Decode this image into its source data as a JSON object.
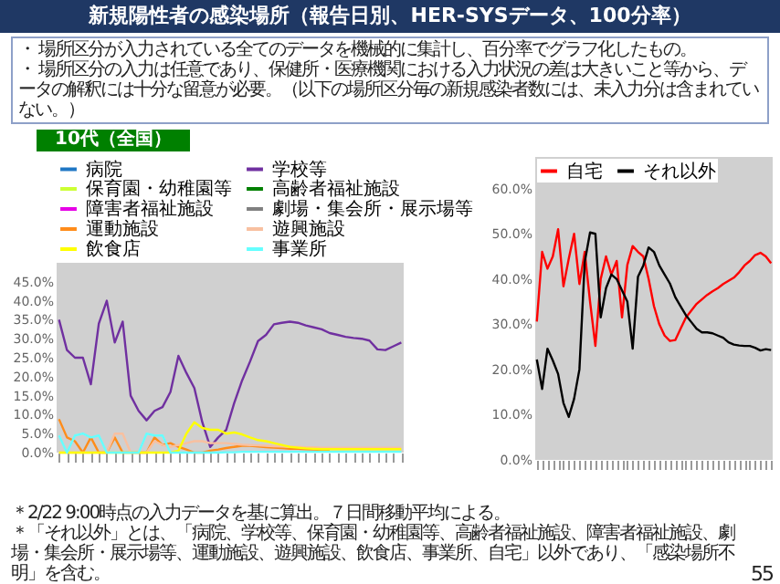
{
  "chart_data": [
    {
      "type": "line",
      "title": "新規陽性者の感染場所（報告日別、HER-SYSデータ、100分率）",
      "subtitle": "10代（全国）",
      "annotations": [
        "・ 場所区分が入力されている全てのデータを機械的に集計し、百分率でグラフ化したもの。",
        "・ 場所区分の入力は任意であり、保健所・医療機関における入力状況の差は大きいこと等から、データの解釈には十分な留意が必要。（以下の場所区分毎の新規感染者数には、未入力分は含まれていない。）",
        "＊2/22 9:00時点の入力データを基に算出。７日間移動平均による。",
        "＊「それ以外」とは、「病院、学校等、保育園・幼稚園等、高齢者福祉施設、障害者福祉施設、劇場・集会所・展示場等、運動施設、遊興施設、飲食店、事業所、自宅」以外であり、「感染場所不明」を含む。",
        "55"
      ],
      "categories": [
        null,
        null,
        null,
        null,
        null,
        null,
        null,
        null,
        null,
        null,
        null,
        null,
        null,
        null,
        null,
        null,
        null,
        null,
        null,
        null,
        null,
        null,
        null,
        null,
        null,
        null,
        null,
        null,
        null,
        null,
        null,
        null,
        null,
        null,
        null,
        null,
        null,
        null,
        null,
        null,
        null,
        null,
        null,
        null
      ],
      "ylim": [
        0,
        50
      ],
      "yticks": [
        {
          "value": 0,
          "label": "0.0%"
        },
        {
          "value": 5,
          "label": "5.0%"
        },
        {
          "value": 10,
          "label": "10.0%"
        },
        {
          "value": 15,
          "label": "15.0%"
        },
        {
          "value": 20,
          "label": "20.0%"
        },
        {
          "value": 25,
          "label": "25.0%"
        },
        {
          "value": 30,
          "label": "30.0%"
        },
        {
          "value": 35,
          "label": "35.0%"
        },
        {
          "value": 40,
          "label": "40.0%"
        },
        {
          "value": 45,
          "label": "45.0%"
        }
      ],
      "legend": "top",
      "series": [
        {
          "name": "病院",
          "color": "#1f77c4",
          "values": [
            null,
            null,
            null,
            null,
            null,
            null,
            null,
            null,
            null,
            null,
            null,
            null,
            null,
            null,
            null,
            null,
            null,
            null,
            null,
            null,
            null,
            null,
            null,
            null,
            null,
            null,
            null,
            null,
            null,
            null,
            null,
            null,
            null,
            null,
            null,
            null,
            null,
            null,
            null,
            null,
            null,
            null,
            null,
            null
          ]
        },
        {
          "name": "学校等",
          "color": "#7030a0",
          "values": [
            35,
            27,
            25,
            25,
            18,
            34,
            40,
            29,
            34.5,
            15,
            11,
            8.5,
            11,
            12,
            16,
            25.5,
            21,
            17,
            8,
            1.5,
            4,
            6,
            13,
            19,
            24,
            29.4,
            31,
            33.8,
            34.2,
            34.5,
            34.2,
            33.5,
            33,
            32.5,
            31.5,
            31,
            30.5,
            30.2,
            30,
            29.5,
            27.2,
            27,
            28,
            29
          ]
        },
        {
          "name": "保育園・幼稚園等",
          "color": "#ccff33",
          "values": [
            null,
            null,
            null,
            null,
            null,
            null,
            null,
            null,
            null,
            null,
            null,
            null,
            null,
            null,
            null,
            null,
            null,
            null,
            null,
            null,
            null,
            null,
            null,
            null,
            null,
            null,
            null,
            null,
            null,
            null,
            null,
            null,
            null,
            null,
            null,
            null,
            null,
            null,
            null,
            null,
            null,
            null,
            null,
            null
          ]
        },
        {
          "name": "高齢者福祉施設",
          "color": "#008000",
          "values": [
            null,
            null,
            null,
            null,
            null,
            null,
            null,
            null,
            null,
            null,
            null,
            null,
            null,
            null,
            null,
            null,
            null,
            null,
            null,
            null,
            null,
            null,
            null,
            null,
            null,
            null,
            null,
            null,
            null,
            null,
            null,
            null,
            null,
            null,
            null,
            null,
            null,
            null,
            null,
            null,
            null,
            null,
            null,
            null
          ]
        },
        {
          "name": "障害者福祉施設",
          "color": "#e600e6",
          "values": [
            null,
            null,
            null,
            null,
            null,
            null,
            null,
            null,
            null,
            null,
            null,
            null,
            null,
            null,
            null,
            null,
            null,
            null,
            null,
            null,
            null,
            null,
            null,
            null,
            null,
            null,
            null,
            null,
            null,
            null,
            null,
            null,
            null,
            null,
            null,
            null,
            null,
            null,
            null,
            null,
            null,
            null,
            null,
            null
          ]
        },
        {
          "name": "劇場・集会所・展示場等",
          "color": "#808080",
          "values": [
            null,
            null,
            null,
            null,
            null,
            null,
            null,
            null,
            null,
            null,
            null,
            null,
            null,
            null,
            null,
            null,
            null,
            null,
            null,
            null,
            null,
            null,
            null,
            null,
            null,
            null,
            null,
            null,
            null,
            null,
            null,
            null,
            null,
            null,
            null,
            null,
            null,
            null,
            null,
            null,
            null,
            null,
            null,
            null
          ]
        },
        {
          "name": "運動施設",
          "color": "#ff8c1a",
          "values": [
            8.8,
            4,
            3,
            0,
            4,
            0,
            0,
            4,
            0,
            0,
            0,
            0,
            4,
            2,
            2.5,
            1.5,
            0.8,
            0,
            0,
            0.5,
            0.8,
            1.2,
            1.5,
            1.8,
            1.8,
            1.6,
            1.4,
            1.3,
            1.2,
            1,
            1,
            0.9,
            0.8,
            0.7,
            0.6,
            null,
            null,
            null,
            null,
            null,
            null,
            null,
            null,
            null
          ]
        },
        {
          "name": "遊興施設",
          "color": "#f8c0a0",
          "values": [
            0,
            0,
            0,
            0,
            0,
            0,
            0,
            5,
            5,
            0,
            0,
            0,
            3,
            2,
            1.5,
            2,
            2.5,
            3,
            3,
            2.5,
            2.5,
            2.5,
            2.3,
            2.1,
            2,
            1.9,
            1.8,
            1.7,
            1.6,
            1.5,
            1.5,
            1.4,
            1.4,
            1.3,
            1.3,
            1.3,
            1.3,
            1.3,
            1.3,
            1.3,
            1.3,
            1.3,
            1.3,
            1.3
          ]
        },
        {
          "name": "飲食店",
          "color": "#ffff00",
          "values": [
            0,
            0,
            0,
            0,
            0,
            0,
            0,
            0,
            0,
            0,
            0,
            0,
            0,
            0,
            0,
            0.5,
            5,
            8,
            6.5,
            6,
            6,
            5,
            5.3,
            4.8,
            4,
            3.3,
            3,
            2.5,
            2,
            1.5,
            1.3,
            1.1,
            1,
            0.9,
            0.9,
            0.9,
            0.9,
            0.9,
            0.9,
            0.9,
            0.9,
            0.9,
            0.9,
            0.9
          ]
        },
        {
          "name": "事業所",
          "color": "#66ffff",
          "values": [
            4.5,
            0,
            4.5,
            5,
            4,
            4.5,
            0,
            0,
            0,
            0,
            0,
            5,
            4.5,
            4.5,
            0,
            0,
            0,
            0,
            0,
            0,
            0,
            0.1,
            0.1,
            0.2,
            0.2,
            0.2,
            0.2,
            0.2,
            0.2,
            0.2,
            0.2,
            0.2,
            0.2,
            0.2,
            0.2,
            0.2,
            0.2,
            0.2,
            0.2,
            0.2,
            0.2,
            0.2,
            0.2,
            0.2
          ]
        }
      ]
    },
    {
      "type": "line",
      "categories": [
        null,
        null,
        null,
        null,
        null,
        null,
        null,
        null,
        null,
        null,
        null,
        null,
        null,
        null,
        null,
        null,
        null,
        null,
        null,
        null,
        null,
        null,
        null,
        null,
        null,
        null,
        null,
        null,
        null,
        null,
        null,
        null,
        null,
        null,
        null,
        null,
        null,
        null,
        null,
        null,
        null,
        null,
        null,
        null,
        null
      ],
      "ylim": [
        0,
        67
      ],
      "yticks": [
        {
          "value": 0,
          "label": "0.0%"
        },
        {
          "value": 10,
          "label": "10.0%"
        },
        {
          "value": 20,
          "label": "20.0%"
        },
        {
          "value": 30,
          "label": "30.0%"
        },
        {
          "value": 40,
          "label": "40.0%"
        },
        {
          "value": 50,
          "label": "50.0%"
        },
        {
          "value": 60,
          "label": "60.0%"
        }
      ],
      "legend": "top left",
      "series": [
        {
          "name": "自宅",
          "color": "#ff0000",
          "values": [
            30.6,
            46,
            42.3,
            45,
            51,
            38.4,
            44.5,
            50,
            38.9,
            46,
            35,
            25.2,
            40,
            45,
            41,
            44,
            31.5,
            43.1,
            47.3,
            46,
            45,
            40,
            34,
            30,
            27.5,
            26.3,
            26.5,
            29,
            31.5,
            33,
            34.5,
            35.5,
            36.5,
            37.3,
            38,
            38.9,
            39.6,
            40.3,
            41.5,
            43,
            44,
            45.3,
            45.8,
            45,
            43.5
          ]
        },
        {
          "name": "それ以外",
          "color": "#000000",
          "values": [
            22.2,
            15.7,
            24.6,
            22,
            19,
            12.6,
            9.5,
            13.5,
            20,
            43.8,
            50.3,
            50,
            31.5,
            38,
            41,
            40,
            37.5,
            35,
            24.6,
            40.5,
            43,
            47,
            46,
            43,
            41,
            39,
            36,
            34,
            32,
            30.5,
            29,
            28.2,
            28.2,
            28,
            27.5,
            27,
            26,
            25.5,
            25.3,
            25.2,
            25.2,
            24.8,
            24.2,
            24.5,
            24.3
          ]
        }
      ]
    }
  ]
}
